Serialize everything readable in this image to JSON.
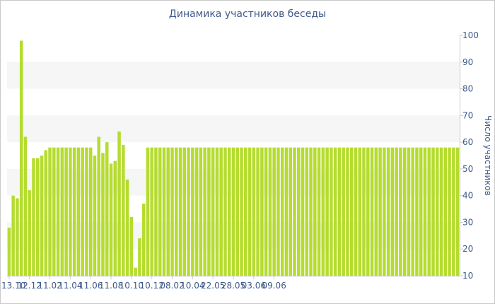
{
  "chart_data": {
    "type": "bar",
    "title": "Динамика участников беседы",
    "xlabel": "",
    "ylabel": "Число участников",
    "ylim": [
      10,
      100
    ],
    "yticks": [
      10,
      20,
      30,
      40,
      50,
      60,
      70,
      80,
      90,
      100
    ],
    "y_axis_position": "right",
    "grid": "alternating horizontal bands",
    "legend": "none",
    "bar_color": "#b5dc2f",
    "band_color": "#f6f6f6",
    "text_color": "#3e5a8a",
    "x_tick_labels": [
      {
        "label": "13.10",
        "index": 0
      },
      {
        "label": "12.12",
        "index": 5
      },
      {
        "label": "11.02",
        "index": 10
      },
      {
        "label": "11.04",
        "index": 15
      },
      {
        "label": "11.06",
        "index": 20
      },
      {
        "label": "11.08",
        "index": 25
      },
      {
        "label": "10.10",
        "index": 30
      },
      {
        "label": "10.12",
        "index": 35
      },
      {
        "label": "08.02",
        "index": 40
      },
      {
        "label": "10.04",
        "index": 45
      },
      {
        "label": "22.05",
        "index": 50
      },
      {
        "label": "28.05",
        "index": 55
      },
      {
        "label": "03.06",
        "index": 60
      },
      {
        "label": "09.06",
        "index": 65
      }
    ],
    "values": [
      28,
      40,
      39,
      98,
      62,
      42,
      54,
      54,
      55,
      57,
      58,
      58,
      58,
      58,
      58,
      58,
      58,
      58,
      58,
      58,
      58,
      55,
      62,
      56,
      60,
      52,
      53,
      64,
      59,
      46,
      32,
      13,
      24,
      37,
      58,
      58,
      58,
      58,
      58,
      58,
      58,
      58,
      58,
      58,
      58,
      58,
      58,
      58,
      58,
      58,
      58,
      58,
      58,
      58,
      58,
      58,
      58,
      58,
      58,
      58,
      58,
      58,
      58,
      58,
      58,
      58,
      58,
      58,
      58,
      58,
      58,
      58,
      58,
      58,
      58,
      58,
      58,
      58,
      58,
      58,
      58,
      58,
      58,
      58,
      58,
      58,
      58,
      58,
      58,
      58,
      58,
      58,
      58,
      58,
      58,
      58,
      58,
      58,
      58,
      58,
      58,
      58,
      58,
      58,
      58,
      58,
      58,
      58,
      58,
      58,
      58
    ]
  }
}
